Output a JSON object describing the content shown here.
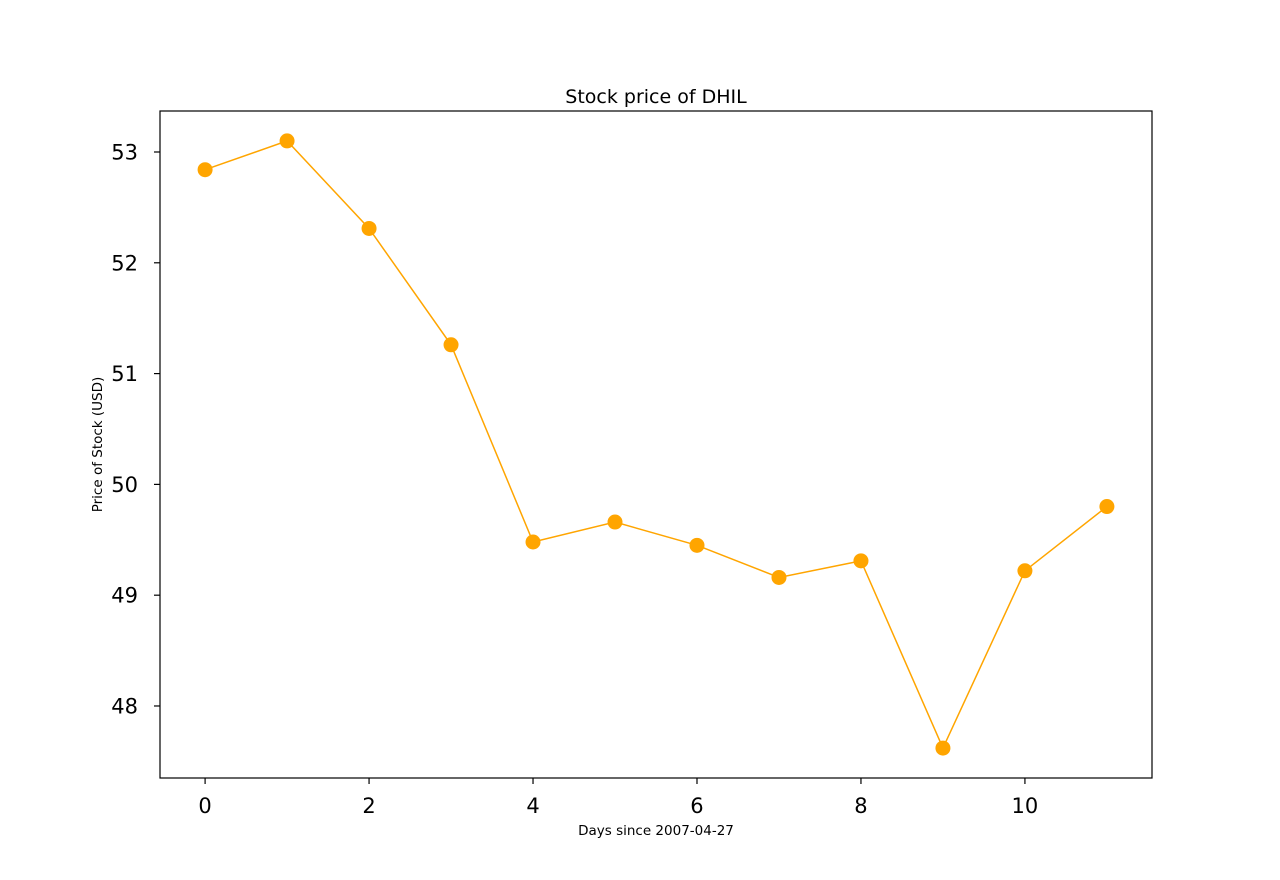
{
  "chart_data": {
    "type": "line",
    "title": "Stock price of DHIL",
    "xlabel": "Days since 2007-04-27",
    "ylabel": "Price of Stock (USD)",
    "x": [
      0,
      1,
      2,
      3,
      4,
      5,
      6,
      7,
      8,
      9,
      10,
      11
    ],
    "series": [
      {
        "values": [
          52.84,
          53.1,
          52.31,
          51.26,
          49.48,
          49.66,
          49.45,
          49.16,
          49.31,
          47.62,
          49.22,
          49.8
        ],
        "color": "#FFA500",
        "marker": "circle"
      }
    ],
    "xlim": [
      -0.55,
      11.55
    ],
    "ylim": [
      47.35,
      53.37
    ],
    "xticks": [
      0,
      2,
      4,
      6,
      8,
      10
    ],
    "yticks": [
      48,
      49,
      50,
      51,
      52,
      53
    ],
    "grid": false,
    "legend": "none"
  }
}
